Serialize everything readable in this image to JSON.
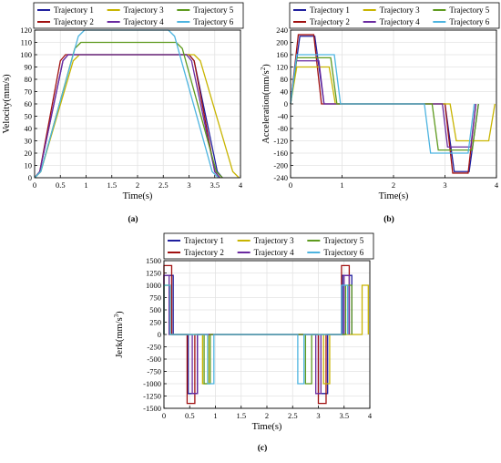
{
  "chart_data": [
    {
      "type": "line",
      "caption": "(a)",
      "xlabel": "Time(s)",
      "ylabel": "Velocity(mm/s)",
      "xlim": [
        0,
        4
      ],
      "ylim": [
        0,
        120
      ],
      "xticks": [
        "0",
        "0.5",
        "1",
        "1.5",
        "2",
        "2.5",
        "3",
        "3.5",
        "4"
      ],
      "yticks": [
        "0",
        "10",
        "20",
        "30",
        "40",
        "50",
        "60",
        "70",
        "80",
        "90",
        "100",
        "110",
        "120"
      ],
      "grid": true,
      "legend_position": "top",
      "series": [
        {
          "name": "Trajectory 1",
          "color": "#1f1f9e",
          "x": [
            0,
            0.1,
            0.55,
            0.65,
            3.0,
            3.1,
            3.55,
            3.65
          ],
          "y": [
            0,
            5,
            95,
            100,
            100,
            95,
            5,
            0
          ]
        },
        {
          "name": "Trajectory 2",
          "color": "#a01010",
          "x": [
            0,
            0.1,
            0.5,
            0.6,
            3.0,
            3.1,
            3.5,
            3.6
          ],
          "y": [
            0,
            5,
            95,
            100,
            100,
            95,
            5,
            0
          ]
        },
        {
          "name": "Trajectory 3",
          "color": "#c8b400",
          "x": [
            0,
            0.12,
            0.75,
            0.87,
            3.1,
            3.22,
            3.85,
            3.97
          ],
          "y": [
            0,
            5,
            95,
            100,
            100,
            95,
            5,
            0
          ]
        },
        {
          "name": "Trajectory 4",
          "color": "#6a2aa0",
          "x": [
            0,
            0.1,
            0.55,
            0.65,
            2.95,
            3.05,
            3.5,
            3.6
          ],
          "y": [
            0,
            5,
            95,
            100,
            100,
            95,
            5,
            0
          ]
        },
        {
          "name": "Trajectory 5",
          "color": "#5e9a1e",
          "x": [
            0,
            0.12,
            0.78,
            0.9,
            2.75,
            2.87,
            3.53,
            3.65
          ],
          "y": [
            0,
            5,
            105,
            110,
            110,
            105,
            5,
            0
          ]
        },
        {
          "name": "Trajectory 6",
          "color": "#4db4e0",
          "x": [
            0,
            0.12,
            0.85,
            0.97,
            2.6,
            2.72,
            3.45,
            3.57
          ],
          "y": [
            0,
            5,
            115,
            120,
            120,
            115,
            5,
            0
          ]
        }
      ]
    },
    {
      "type": "line",
      "caption": "(b)",
      "xlabel": "Time(s)",
      "ylabel": "Acceleration(mm/s",
      "ylabel_sup": "2",
      "ylabel_end": ")",
      "xlim": [
        0,
        4
      ],
      "ylim": [
        -240,
        240
      ],
      "xticks": [
        "0",
        "1",
        "2",
        "3",
        "4"
      ],
      "yticks": [
        "-240",
        "-200",
        "-160",
        "-120",
        "-80",
        "-40",
        "0",
        "40",
        "80",
        "120",
        "160",
        "200",
        "240"
      ],
      "grid": true,
      "legend_position": "top",
      "series": [
        {
          "name": "Trajectory 1",
          "color": "#1f1f9e",
          "x": [
            0,
            0.18,
            0.47,
            0.65,
            3.0,
            3.18,
            3.47,
            3.65
          ],
          "y": [
            0,
            220,
            220,
            0,
            0,
            -220,
            -220,
            0
          ]
        },
        {
          "name": "Trajectory 2",
          "color": "#a01010",
          "x": [
            0,
            0.15,
            0.45,
            0.6,
            3.0,
            3.15,
            3.45,
            3.6
          ],
          "y": [
            0,
            225,
            225,
            0,
            0,
            -225,
            -225,
            0
          ]
        },
        {
          "name": "Trajectory 3",
          "color": "#c8b400",
          "x": [
            0,
            0.12,
            0.75,
            0.87,
            3.1,
            3.22,
            3.85,
            3.97
          ],
          "y": [
            0,
            120,
            120,
            0,
            0,
            -120,
            -120,
            0
          ]
        },
        {
          "name": "Trajectory 4",
          "color": "#6a2aa0",
          "x": [
            0,
            0.1,
            0.55,
            0.65,
            2.95,
            3.05,
            3.5,
            3.6
          ],
          "y": [
            0,
            140,
            140,
            0,
            0,
            -140,
            -140,
            0
          ]
        },
        {
          "name": "Trajectory 5",
          "color": "#5e9a1e",
          "x": [
            0,
            0.12,
            0.78,
            0.9,
            2.75,
            2.87,
            3.53,
            3.65
          ],
          "y": [
            0,
            150,
            150,
            0,
            0,
            -150,
            -150,
            0
          ]
        },
        {
          "name": "Trajectory 6",
          "color": "#4db4e0",
          "x": [
            0,
            0.12,
            0.85,
            0.97,
            2.6,
            2.72,
            3.45,
            3.57
          ],
          "y": [
            0,
            160,
            160,
            0,
            0,
            -160,
            -160,
            0
          ]
        }
      ]
    },
    {
      "type": "line",
      "caption": "(c)",
      "xlabel": "Time(s)",
      "ylabel": "Jerk(mm/s",
      "ylabel_sup": "3",
      "ylabel_end": ")",
      "xlim": [
        0,
        4
      ],
      "ylim": [
        -1500,
        1500
      ],
      "xticks": [
        "0",
        "0.5",
        "1",
        "1.5",
        "2",
        "2.5",
        "3",
        "3.5",
        "4"
      ],
      "yticks": [
        "-1500",
        "-1250",
        "-1000",
        "-750",
        "-500",
        "-250",
        "0",
        "250",
        "500",
        "750",
        "1000",
        "1250",
        "1500"
      ],
      "grid": true,
      "legend_position": "top",
      "series": [
        {
          "name": "Trajectory 1",
          "color": "#1f1f9e",
          "x": [
            0,
            0,
            0.18,
            0.18,
            0.47,
            0.47,
            0.65,
            0.65,
            3.0,
            3.0,
            3.18,
            3.18,
            3.47,
            3.47,
            3.65,
            3.65
          ],
          "y": [
            0,
            1200,
            1200,
            0,
            0,
            -1200,
            -1200,
            0,
            0,
            -1200,
            -1200,
            0,
            0,
            1200,
            1200,
            0
          ]
        },
        {
          "name": "Trajectory 2",
          "color": "#a01010",
          "x": [
            0,
            0,
            0.15,
            0.15,
            0.45,
            0.45,
            0.6,
            0.6,
            3.0,
            3.0,
            3.15,
            3.15,
            3.45,
            3.45,
            3.6,
            3.6
          ],
          "y": [
            0,
            1400,
            1400,
            0,
            0,
            -1400,
            -1400,
            0,
            0,
            -1400,
            -1400,
            0,
            0,
            1400,
            1400,
            0
          ]
        },
        {
          "name": "Trajectory 3",
          "color": "#c8b400",
          "x": [
            0,
            0,
            0.12,
            0.12,
            0.75,
            0.75,
            0.87,
            0.87,
            3.1,
            3.1,
            3.22,
            3.22,
            3.85,
            3.85,
            3.97,
            3.97
          ],
          "y": [
            0,
            1000,
            1000,
            0,
            0,
            -1000,
            -1000,
            0,
            0,
            -1000,
            -1000,
            0,
            0,
            1000,
            1000,
            0
          ]
        },
        {
          "name": "Trajectory 4",
          "color": "#6a2aa0",
          "x": [
            0,
            0,
            0.1,
            0.1,
            0.55,
            0.55,
            0.65,
            0.65,
            2.95,
            2.95,
            3.05,
            3.05,
            3.5,
            3.5,
            3.6,
            3.6
          ],
          "y": [
            0,
            1200,
            1200,
            0,
            0,
            -1200,
            -1200,
            0,
            0,
            -1200,
            -1200,
            0,
            0,
            1200,
            1200,
            0
          ]
        },
        {
          "name": "Trajectory 5",
          "color": "#5e9a1e",
          "x": [
            0,
            0,
            0.12,
            0.12,
            0.78,
            0.78,
            0.9,
            0.9,
            2.75,
            2.75,
            2.87,
            2.87,
            3.53,
            3.53,
            3.65,
            3.65
          ],
          "y": [
            0,
            1000,
            1000,
            0,
            0,
            -1000,
            -1000,
            0,
            0,
            -1000,
            -1000,
            0,
            0,
            1000,
            1000,
            0
          ]
        },
        {
          "name": "Trajectory 6",
          "color": "#4db4e0",
          "x": [
            0,
            0,
            0.12,
            0.12,
            0.85,
            0.85,
            0.97,
            0.97,
            2.6,
            2.6,
            2.72,
            2.72,
            3.45,
            3.45,
            3.57,
            3.57
          ],
          "y": [
            0,
            1000,
            1000,
            0,
            0,
            -1000,
            -1000,
            0,
            0,
            -1000,
            -1000,
            0,
            0,
            1000,
            1000,
            0
          ]
        }
      ]
    }
  ]
}
